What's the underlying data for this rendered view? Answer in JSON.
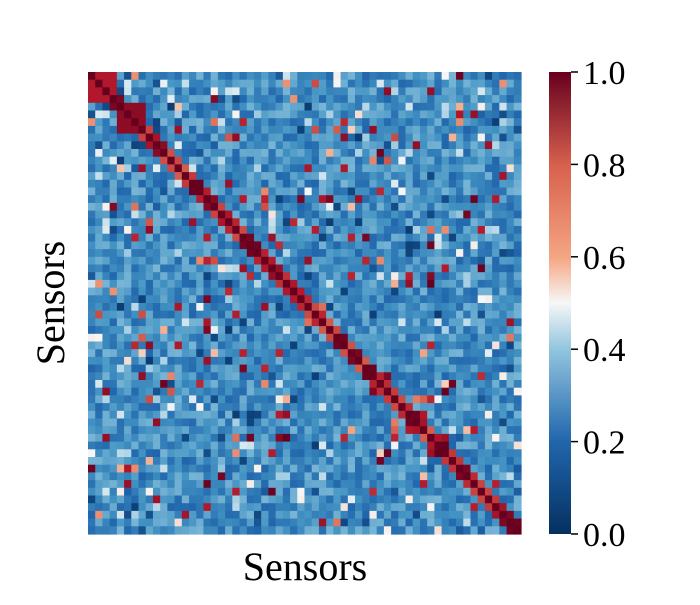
{
  "chart_data": {
    "type": "heatmap",
    "title": "",
    "xlabel": "Sensors",
    "ylabel": "Sensors",
    "grid": false,
    "colormap": "RdBu_r",
    "colors": {
      "min": "#053061",
      "low": "#2166ac",
      "mid_low": "#92c5de",
      "mid": "#f7f7f7",
      "mid_high": "#f4a582",
      "high": "#d6604d",
      "max": "#67001f"
    },
    "colorbar": {
      "range": [
        0.0,
        1.0
      ],
      "ticks": [
        0.0,
        0.2,
        0.4,
        0.6,
        0.8,
        1.0
      ],
      "tick_labels": [
        "0.0",
        "0.2",
        "0.4",
        "0.6",
        "0.8",
        "1.0"
      ]
    },
    "n_sensors": 60,
    "value_range": [
      0.0,
      1.0
    ],
    "diagonal_value": 1.0,
    "background_value_range": [
      0.1,
      0.35
    ],
    "x_tick_labels": [],
    "y_tick_labels": []
  }
}
